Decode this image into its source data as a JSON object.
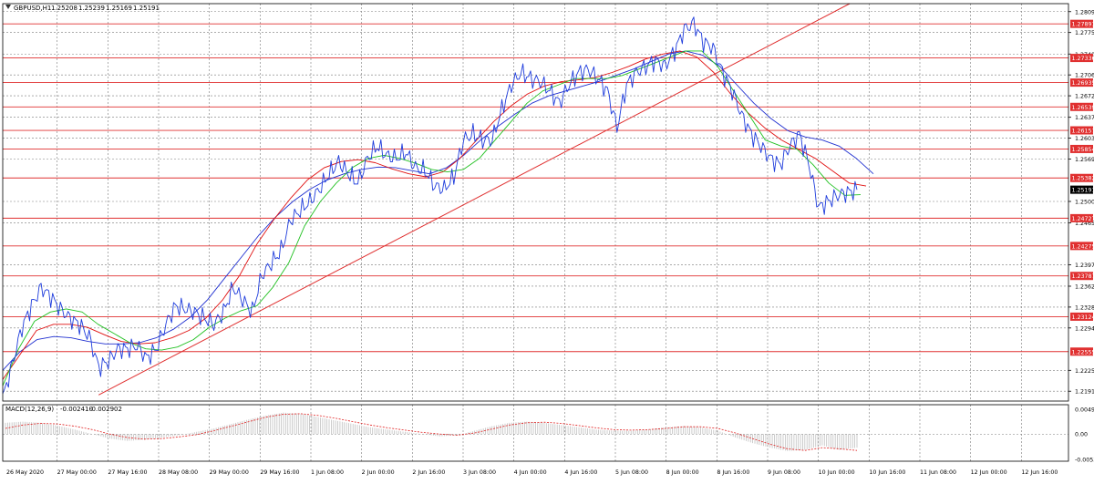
{
  "window": {
    "title": "GBPUSD,H1",
    "ohlc": [
      "1.25208",
      "1.25239",
      "1.25169",
      "1.25191"
    ],
    "menu_icon": "triangle-down-icon"
  },
  "colors": {
    "background": "#ffffff",
    "grid": "#7a7a7a",
    "price_line": "#1e3cdc",
    "ma_fast": "#20c020",
    "ma_mid": "#e01010",
    "ma_slow": "#2030d0",
    "level": "#e03030",
    "trendline": "#e03030",
    "macd_hist": "#c0c0c0",
    "macd_signal": "#e02020",
    "axis_text": "#000000",
    "current_price_bg": "#000000"
  },
  "chart_data": [
    {
      "type": "line",
      "symbol": "GBPUSD",
      "timeframe": "H1",
      "ylim": [
        1.2175,
        1.2822
      ],
      "y_ticks": [
        "1.28090",
        "1.27750",
        "1.27400",
        "1.27060",
        "1.26720",
        "1.26370",
        "1.26030",
        "1.25690",
        "1.25000",
        "1.24650",
        "1.23970",
        "1.23620",
        "1.23280",
        "1.22940",
        "1.22250",
        "1.21910"
      ],
      "x_ticks": [
        "26 May 2020",
        "27 May 00:00",
        "27 May 16:00",
        "28 May 08:00",
        "29 May 00:00",
        "29 May 16:00",
        "1 Jun 08:00",
        "2 Jun 00:00",
        "2 Jun 16:00",
        "3 Jun 08:00",
        "4 Jun 00:00",
        "4 Jun 16:00",
        "5 Jun 08:00",
        "8 Jun 00:00",
        "8 Jun 16:00",
        "9 Jun 08:00",
        "10 Jun 00:00",
        "10 Jun 16:00",
        "11 Jun 08:00",
        "12 Jun 00:00",
        "12 Jun 16:00"
      ],
      "price": [
        1.218,
        1.2235,
        1.2295,
        1.233,
        1.236,
        1.2345,
        1.2325,
        1.231,
        1.23,
        1.228,
        1.223,
        1.224,
        1.226,
        1.226,
        1.2265,
        1.2245,
        1.226,
        1.23,
        1.233,
        1.2325,
        1.232,
        1.231,
        1.23,
        1.232,
        1.236,
        1.234,
        1.232,
        1.238,
        1.24,
        1.242,
        1.247,
        1.2485,
        1.25,
        1.252,
        1.2545,
        1.2565,
        1.2545,
        1.253,
        1.257,
        1.259,
        1.2575,
        1.257,
        1.258,
        1.2555,
        1.255,
        1.2525,
        1.252,
        1.254,
        1.26,
        1.261,
        1.26,
        1.26,
        1.265,
        1.269,
        1.271,
        1.27,
        1.2695,
        1.268,
        1.266,
        1.269,
        1.271,
        1.2715,
        1.27,
        1.268,
        1.262,
        1.269,
        1.271,
        1.272,
        1.273,
        1.272,
        1.2745,
        1.278,
        1.279,
        1.276,
        1.275,
        1.271,
        1.268,
        1.264,
        1.261,
        1.259,
        1.257,
        1.256,
        1.259,
        1.261,
        1.256,
        1.249,
        1.25,
        1.251,
        1.2515,
        1.2519
      ],
      "ma_fast": [
        1.22,
        1.226,
        1.2305,
        1.232,
        1.2325,
        1.232,
        1.23,
        1.2285,
        1.227,
        1.226,
        1.2258,
        1.2263,
        1.2275,
        1.2295,
        1.231,
        1.2322,
        1.233,
        1.236,
        1.24,
        1.246,
        1.25,
        1.253,
        1.2555,
        1.257,
        1.2575,
        1.257,
        1.2562,
        1.2552,
        1.2548,
        1.2552,
        1.257,
        1.26,
        1.263,
        1.266,
        1.268,
        1.269,
        1.27,
        1.27,
        1.27,
        1.2705,
        1.2715,
        1.2725,
        1.2735,
        1.2745,
        1.2745,
        1.272,
        1.268,
        1.264,
        1.26,
        1.259,
        1.2585,
        1.256,
        1.253,
        1.251,
        1.2511
      ],
      "ma_mid": [
        1.221,
        1.225,
        1.229,
        1.23,
        1.23,
        1.2295,
        1.2283,
        1.2272,
        1.2268,
        1.227,
        1.2278,
        1.229,
        1.231,
        1.234,
        1.238,
        1.243,
        1.247,
        1.2505,
        1.2535,
        1.2555,
        1.2565,
        1.2568,
        1.2563,
        1.2553,
        1.2545,
        1.254,
        1.2548,
        1.257,
        1.26,
        1.263,
        1.2655,
        1.2675,
        1.2688,
        1.2695,
        1.2698,
        1.2702,
        1.271,
        1.272,
        1.2732,
        1.274,
        1.2745,
        1.2735,
        1.271,
        1.2675,
        1.2645,
        1.262,
        1.26,
        1.2585,
        1.257,
        1.255,
        1.253,
        1.2525
      ],
      "ma_slow": [
        1.2225,
        1.2255,
        1.2275,
        1.228,
        1.2278,
        1.2272,
        1.2268,
        1.2268,
        1.227,
        1.2278,
        1.2292,
        1.2312,
        1.234,
        1.2375,
        1.241,
        1.2445,
        1.2475,
        1.25,
        1.252,
        1.2535,
        1.2545,
        1.2552,
        1.2556,
        1.2555,
        1.255,
        1.2545,
        1.2555,
        1.2575,
        1.26,
        1.2622,
        1.2642,
        1.266,
        1.2672,
        1.268,
        1.2688,
        1.2696,
        1.2706,
        1.2716,
        1.2728,
        1.274,
        1.2745,
        1.2738,
        1.272,
        1.269,
        1.266,
        1.2635,
        1.2615,
        1.2605,
        1.26,
        1.259,
        1.257,
        1.2545
      ],
      "horizontal_levels": [
        "1.27891",
        "1.27336",
        "1.26935",
        "1.26539",
        "1.26157",
        "1.25854",
        "1.25382",
        "1.24727",
        "1.24275",
        "1.23787",
        "1.23124",
        "1.22555"
      ],
      "current_price": "1.25191",
      "trendline": [
        [
          0.09,
          1.2185
        ],
        [
          1.0,
          1.2822
        ]
      ]
    },
    {
      "type": "bar",
      "indicator": "MACD",
      "label": "MACD(12,26,9)",
      "values_text": [
        "-0.002410",
        "-0.002902"
      ],
      "ylim": [
        -0.0048,
        0.0052
      ],
      "y_ticks": [
        "0.00494",
        "0.00",
        "-0.00533"
      ],
      "histogram": [
        0.002,
        0.0022,
        0.002,
        0.0015,
        0.0008,
        0.0,
        -0.0008,
        -0.0012,
        -0.001,
        -0.0006,
        -0.0002,
        0.0004,
        0.001,
        0.0018,
        0.0026,
        0.0033,
        0.0038,
        0.0036,
        0.003,
        0.0024,
        0.0018,
        0.0012,
        0.0008,
        0.0004,
        0.0,
        -0.0004,
        -0.0002,
        0.0006,
        0.0014,
        0.002,
        0.0022,
        0.002,
        0.0016,
        0.0012,
        0.0008,
        0.0006,
        0.0006,
        0.0008,
        0.0012,
        0.0014,
        0.0012,
        0.0006,
        -0.0006,
        -0.0016,
        -0.0024,
        -0.003,
        -0.0028,
        -0.002,
        -0.0028,
        -0.0024
      ],
      "signal": [
        0.001,
        0.0016,
        0.0019,
        0.0018,
        0.0014,
        0.0008,
        0.0,
        -0.0006,
        -0.0009,
        -0.0008,
        -0.0005,
        -0.0001,
        0.0006,
        0.0014,
        0.0022,
        0.003,
        0.0035,
        0.0036,
        0.0033,
        0.0028,
        0.0022,
        0.0016,
        0.0011,
        0.0007,
        0.0003,
        0.0,
        -0.0002,
        0.0002,
        0.0009,
        0.0016,
        0.002,
        0.0021,
        0.0019,
        0.0015,
        0.0011,
        0.0008,
        0.0007,
        0.0008,
        0.001,
        0.0013,
        0.0013,
        0.001,
        0.0002,
        -0.0008,
        -0.0018,
        -0.0026,
        -0.0029,
        -0.0024,
        -0.0026,
        -0.0029
      ]
    }
  ]
}
